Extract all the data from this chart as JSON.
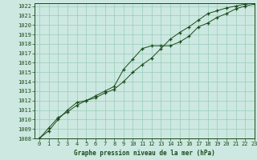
{
  "title": "Graphe pression niveau de la mer (hPa)",
  "xlim": [
    -0.5,
    23
  ],
  "ylim": [
    1008,
    1022.3
  ],
  "xticks": [
    0,
    1,
    2,
    3,
    4,
    5,
    6,
    7,
    8,
    9,
    10,
    11,
    12,
    13,
    14,
    15,
    16,
    17,
    18,
    19,
    20,
    21,
    22,
    23
  ],
  "yticks": [
    1008,
    1009,
    1010,
    1011,
    1012,
    1013,
    1014,
    1015,
    1016,
    1017,
    1018,
    1019,
    1020,
    1021,
    1022
  ],
  "bg_color": "#cce8e0",
  "grid_color": "#99ccbb",
  "line_color": "#1a4a1a",
  "series1_x": [
    0,
    1,
    2,
    3,
    4,
    5,
    6,
    7,
    8,
    9,
    10,
    11,
    12,
    13,
    14,
    15,
    16,
    17,
    18,
    19,
    20,
    21,
    22,
    23
  ],
  "series1_y": [
    1008.0,
    1009.1,
    1010.2,
    1010.8,
    1011.5,
    1012.0,
    1012.5,
    1013.0,
    1013.5,
    1015.3,
    1016.4,
    1017.5,
    1017.8,
    1017.8,
    1017.8,
    1018.2,
    1018.8,
    1019.8,
    1020.2,
    1020.8,
    1021.2,
    1021.7,
    1022.0,
    1022.2
  ],
  "series2_x": [
    0,
    1,
    2,
    3,
    4,
    5,
    6,
    7,
    8,
    9,
    10,
    11,
    12,
    13,
    14,
    15,
    16,
    17,
    18,
    19,
    20,
    21,
    22,
    23
  ],
  "series2_y": [
    1008.0,
    1008.8,
    1010.0,
    1011.0,
    1011.8,
    1012.0,
    1012.3,
    1012.8,
    1013.2,
    1014.0,
    1015.0,
    1015.8,
    1016.5,
    1017.5,
    1018.5,
    1019.2,
    1019.8,
    1020.5,
    1021.2,
    1021.5,
    1021.8,
    1022.0,
    1022.2,
    1022.3
  ],
  "ylabel_fontsize": 5.5,
  "tick_fontsize": 5.0
}
